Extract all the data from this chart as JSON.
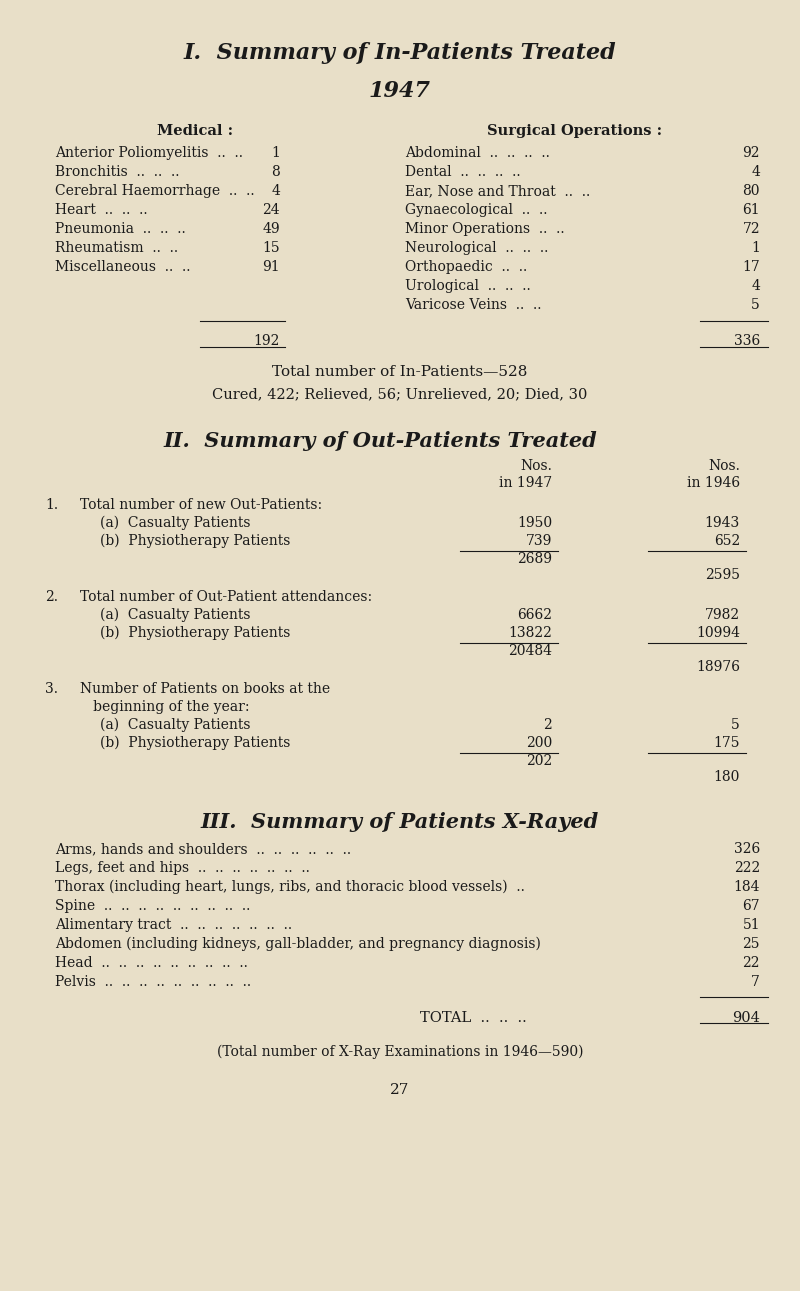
{
  "bg_color": "#e8dfc8",
  "text_color": "#1a1a1a",
  "title1": "I.  Summary of In-Patients Treated",
  "title1_sub": "1947",
  "medical_header": "Medical :",
  "surgical_header": "Surgical Operations :",
  "medical_items": [
    [
      "Anterior Poliomyelitis",
      "1"
    ],
    [
      "Bronchitis",
      "8"
    ],
    [
      "Cerebral Haemorrhage",
      "4"
    ],
    [
      "Heart",
      "24"
    ],
    [
      "Pneumonia",
      "49"
    ],
    [
      "Rheumatism",
      "15"
    ],
    [
      "Miscellaneous",
      "91"
    ]
  ],
  "medical_total": "192",
  "surgical_items": [
    [
      "Abdominal",
      "92"
    ],
    [
      "Dental",
      "4"
    ],
    [
      "Ear, Nose and Throat",
      "80"
    ],
    [
      "Gynaecological",
      "61"
    ],
    [
      "Minor Operations",
      "72"
    ],
    [
      "Neurological",
      "1"
    ],
    [
      "Orthopaedic",
      "17"
    ],
    [
      "Urological",
      "4"
    ],
    [
      "Varicose Veins",
      "5"
    ]
  ],
  "surgical_total": "336",
  "inpatients_total_line": "Total number of In-Patients—528",
  "inpatients_detail_line": "Cured, 422; Relieved, 56; Unrelieved, 20; Died, 30",
  "title2": "II.  Summary of Out-Patients Treated",
  "outpatient_sections": [
    {
      "number": "1.",
      "header": "Total number of new Out-Patients:",
      "header2": null,
      "items": [
        [
          "(a)  Casualty Patients",
          "1950",
          "1943"
        ],
        [
          "(b)  Physiotherapy Patients",
          "739",
          "652"
        ]
      ],
      "subtotal_1947": "2689",
      "subtotal_1946": "2595"
    },
    {
      "number": "2.",
      "header": "Total number of Out-Patient attendances:",
      "header2": null,
      "items": [
        [
          "(a)  Casualty Patients",
          "6662",
          "7982"
        ],
        [
          "(b)  Physiotherapy Patients",
          "13822",
          "10994"
        ]
      ],
      "subtotal_1947": "20484",
      "subtotal_1946": "18976"
    },
    {
      "number": "3.",
      "header": "Number of Patients on books at the",
      "header2": "   beginning of the year:",
      "items": [
        [
          "(a)  Casualty Patients",
          "2",
          "5"
        ],
        [
          "(b)  Physiotherapy Patients",
          "200",
          "175"
        ]
      ],
      "subtotal_1947": "202",
      "subtotal_1946": "180"
    }
  ],
  "title3": "III.  Summary of Patients X-Rayed",
  "xray_items": [
    [
      "Arms, hands and shoulders  ..  ..  ..  ..  ..  ..",
      "326"
    ],
    [
      "Legs, feet and hips  ..  ..  ..  ..  ..  ..  ..",
      "222"
    ],
    [
      "Thorax (including heart, lungs, ribs, and thoracic blood vessels)  ..",
      "184"
    ],
    [
      "Spine  ..  ..  ..  ..  ..  ..  ..  ..  ..",
      "67"
    ],
    [
      "Alimentary tract  ..  ..  ..  ..  ..  ..  ..",
      "51"
    ],
    [
      "Abdomen (including kidneys, gall-bladder, and pregnancy diagnosis)",
      "25"
    ],
    [
      "Head  ..  ..  ..  ..  ..  ..  ..  ..  ..",
      "22"
    ],
    [
      "Pelvis  ..  ..  ..  ..  ..  ..  ..  ..  ..",
      "7"
    ]
  ],
  "xray_total": "904",
  "xray_footnote": "(Total number of X-Ray Examinations in 1946—590)",
  "page_number": "27"
}
